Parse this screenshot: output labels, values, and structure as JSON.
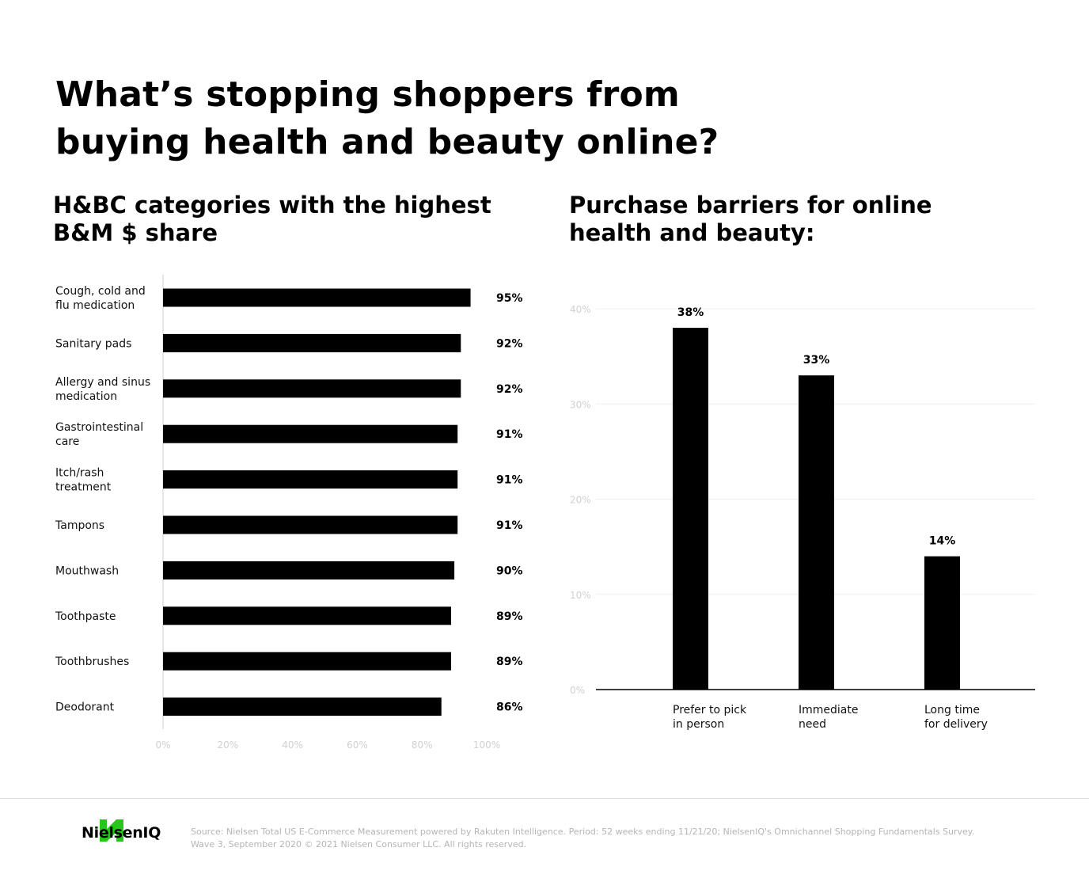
{
  "title_line1": "What’s stopping shoppers from",
  "title_line2": "buying health and beauty online?",
  "chart_data": [
    {
      "type": "bar",
      "orientation": "horizontal",
      "title_line1": "H&BC categories with the highest",
      "title_line2": "B&M $ share",
      "categories": [
        [
          "Cough, cold and",
          "flu medication"
        ],
        [
          "Sanitary pads"
        ],
        [
          "Allergy and sinus",
          "medication"
        ],
        [
          "Gastrointestinal",
          "care"
        ],
        [
          "Itch/rash",
          "treatment"
        ],
        [
          "Tampons"
        ],
        [
          "Mouthwash"
        ],
        [
          "Toothpaste"
        ],
        [
          "Toothbrushes"
        ],
        [
          "Deodorant"
        ]
      ],
      "values": [
        95,
        92,
        92,
        91,
        91,
        91,
        90,
        89,
        89,
        86
      ],
      "value_labels": [
        "95%",
        "92%",
        "92%",
        "91%",
        "91%",
        "91%",
        "90%",
        "89%",
        "89%",
        "86%"
      ],
      "xlim": [
        0,
        100
      ],
      "x_ticks": [
        "0%",
        "20%",
        "40%",
        "60%",
        "80%",
        "100%"
      ],
      "grid": false,
      "bar_color": "#000000"
    },
    {
      "type": "bar",
      "orientation": "vertical",
      "title_line1": "Purchase barriers for online",
      "title_line2": "health and beauty:",
      "categories": [
        [
          "Prefer to pick",
          "in person"
        ],
        [
          "Immediate",
          "need"
        ],
        [
          "Long time",
          "for delivery"
        ]
      ],
      "values": [
        38,
        33,
        14
      ],
      "value_labels": [
        "38%",
        "33%",
        "14%"
      ],
      "ylim": [
        0,
        40
      ],
      "y_ticks": [
        "0%",
        "10%",
        "20%",
        "30%",
        "40%"
      ],
      "grid": true,
      "bar_color": "#000000"
    }
  ],
  "footer": {
    "brand": "NielsenIQ",
    "brand_color": "#25c81a",
    "logo_icon": "nielseniq-logo-icon",
    "source_line1": "Source: Nielsen Total US E-Commerce Measurement powered by Rakuten Intelligence. Period: 52 weeks ending 11/21/20; NielsenIQ's Omnichannel Shopping Fundamentals Survey.",
    "source_line2": "Wave 3, September 2020 © 2021 Nielsen Consumer LLC. All rights reserved."
  }
}
